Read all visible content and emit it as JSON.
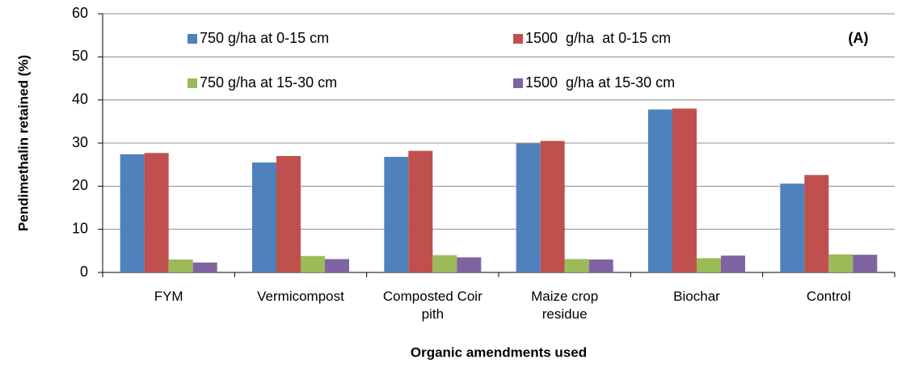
{
  "chart_data": {
    "type": "bar",
    "annotation": "(A)",
    "xlabel": "Organic amendments used",
    "ylabel": "Pendimethalin retained (%)",
    "categories": [
      "FYM",
      "Vermicompost",
      "Composted Coir pith",
      "Maize crop residue",
      "Biochar",
      "Control"
    ],
    "series": [
      {
        "name": "750 g/ha at 0-15 cm",
        "color": "#4f81bd",
        "values": [
          27.4,
          25.5,
          26.8,
          29.9,
          37.8,
          20.6
        ]
      },
      {
        "name": "1500  g/ha  at 0-15 cm",
        "color": "#c0504d",
        "values": [
          27.7,
          27.0,
          28.2,
          30.5,
          38.0,
          22.6
        ]
      },
      {
        "name": "750 g/ha at 15-30 cm",
        "color": "#9bbb59",
        "values": [
          3.0,
          3.8,
          4.0,
          3.1,
          3.3,
          4.2
        ]
      },
      {
        "name": "1500  g/ha at 15-30 cm",
        "color": "#8064a2",
        "values": [
          2.3,
          3.1,
          3.5,
          3.0,
          3.9,
          4.1
        ]
      }
    ],
    "ylim": [
      0,
      60
    ],
    "yticks": [
      0,
      10,
      20,
      30,
      40,
      50,
      60
    ],
    "grid": true
  }
}
